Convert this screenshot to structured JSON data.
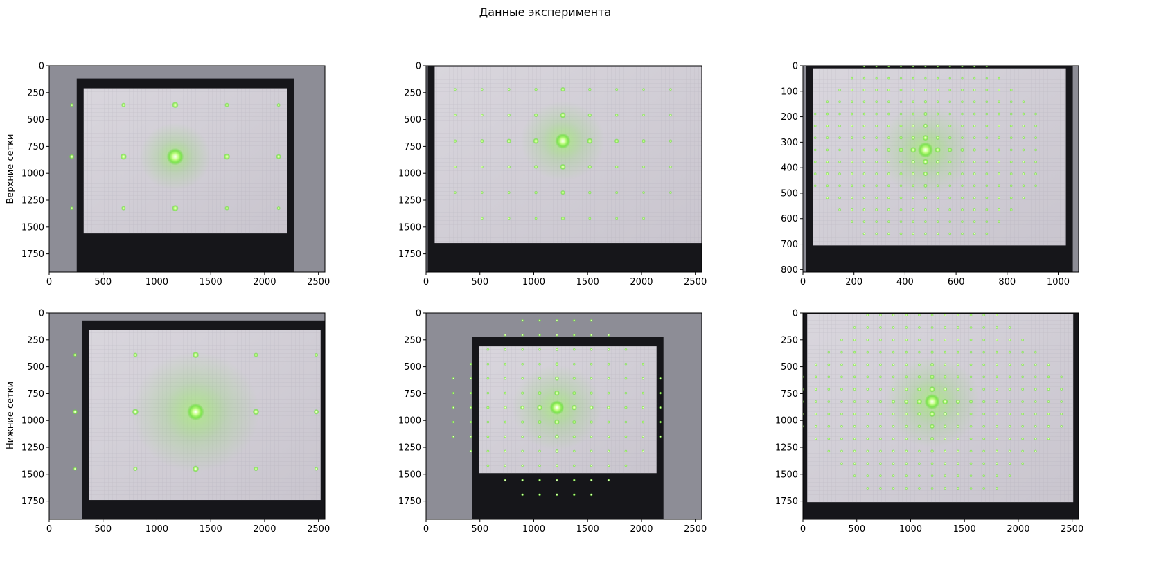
{
  "figure": {
    "suptitle": "Данные эксперимента",
    "row_labels": [
      "Верхние сетки",
      "Нижние сетки"
    ]
  },
  "colors": {
    "laser_green": "#7dff3a",
    "paper": "#d8d4dc",
    "frame": "#16161a",
    "wall": "#8d8d96"
  },
  "chart_data": [
    {
      "type": "image",
      "row": "Верхние сетки",
      "xlim": [
        0,
        2560
      ],
      "ylim": [
        1920,
        0
      ],
      "xticks": [
        0,
        500,
        1000,
        1500,
        2000,
        2500
      ],
      "yticks": [
        0,
        250,
        500,
        750,
        1000,
        1250,
        1500,
        1750
      ],
      "grid": false,
      "paper": [
        320,
        210,
        2210,
        1560
      ],
      "spots": {
        "cx": 1170,
        "cy": 845,
        "dx": 480,
        "dy": 480,
        "nx": 2,
        "ny": 1,
        "max": 1,
        "bright": 1.0,
        "glow": 0.35
      }
    },
    {
      "type": "image",
      "xlim": [
        0,
        2560
      ],
      "ylim": [
        1920,
        0
      ],
      "xticks": [
        0,
        500,
        1000,
        1500,
        2000,
        2500
      ],
      "yticks": [
        0,
        250,
        500,
        750,
        1000,
        1250,
        1500,
        1750
      ],
      "grid": false,
      "paper": [
        80,
        10,
        2560,
        1650
      ],
      "spots": {
        "cx": 1270,
        "cy": 700,
        "dx": 250,
        "dy": 240,
        "nx": 4,
        "ny": 3,
        "max": 4,
        "bright": 0.9,
        "glow": 0.45
      }
    },
    {
      "type": "image",
      "xlim": [
        0,
        1080
      ],
      "ylim": [
        810,
        0
      ],
      "xticks": [
        0,
        200,
        400,
        600,
        800,
        1000
      ],
      "yticks": [
        0,
        100,
        200,
        300,
        400,
        500,
        600,
        700,
        800
      ],
      "grid": false,
      "paper": [
        40,
        10,
        1030,
        705
      ],
      "spots": {
        "cx": 480,
        "cy": 330,
        "dx": 48,
        "dy": 47,
        "nx": 9,
        "ny": 7,
        "max": 10,
        "bright": 0.9,
        "glow": 0.55
      }
    },
    {
      "type": "image",
      "row": "Нижние сетки",
      "xlim": [
        0,
        2560
      ],
      "ylim": [
        1920,
        0
      ],
      "xticks": [
        0,
        500,
        1000,
        1500,
        2000,
        2500
      ],
      "yticks": [
        0,
        250,
        500,
        750,
        1000,
        1250,
        1500,
        1750
      ],
      "grid": false,
      "paper": [
        370,
        160,
        2520,
        1740
      ],
      "spots": {
        "cx": 1360,
        "cy": 920,
        "dx": 560,
        "dy": 530,
        "nx": 2,
        "ny": 1,
        "max": 1,
        "bright": 1.0,
        "glow": 0.8
      }
    },
    {
      "type": "image",
      "xlim": [
        0,
        2560
      ],
      "ylim": [
        1920,
        0
      ],
      "xticks": [
        0,
        500,
        1000,
        1500,
        2000,
        2500
      ],
      "yticks": [
        0,
        250,
        500,
        750,
        1000,
        1250,
        1500,
        1750
      ],
      "grid": false,
      "paper": [
        490,
        310,
        2140,
        1490
      ],
      "spots": {
        "cx": 1215,
        "cy": 880,
        "dx": 160,
        "dy": 135,
        "nx": 6,
        "ny": 6,
        "max": 6,
        "bright": 0.85,
        "glow": 0.5
      }
    },
    {
      "type": "image",
      "xlim": [
        0,
        2560
      ],
      "ylim": [
        1920,
        0
      ],
      "xticks": [
        0,
        500,
        1000,
        1500,
        2000,
        2500
      ],
      "yticks": [
        0,
        250,
        500,
        750,
        1000,
        1250,
        1500,
        1750
      ],
      "grid": false,
      "paper": [
        40,
        10,
        2510,
        1760
      ],
      "spots": {
        "cx": 1200,
        "cy": 825,
        "dx": 120,
        "dy": 115,
        "nx": 10,
        "ny": 7,
        "max": 10,
        "bright": 0.9,
        "glow": 0.55
      }
    }
  ]
}
